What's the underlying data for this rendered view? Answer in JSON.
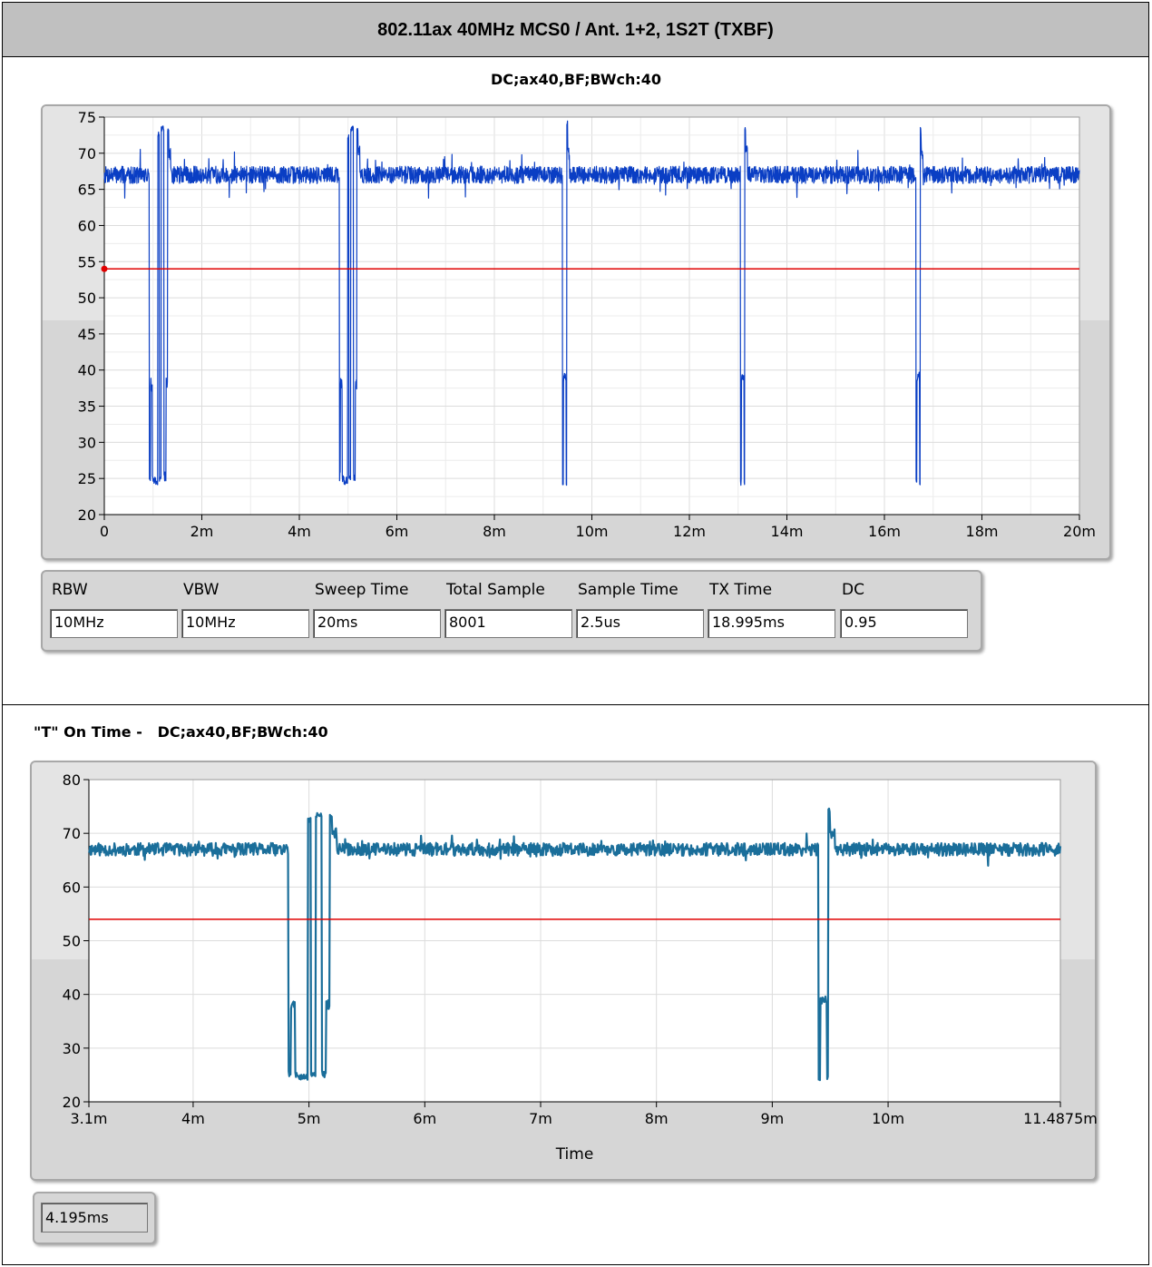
{
  "header": {
    "title": "802.11ax 40MHz MCS0 / Ant. 1+2, 1S2T (TXBF)"
  },
  "colors": {
    "trace_top": "#0a3ec4",
    "trace_bottom": "#1a6e9a",
    "threshold": "#e00000",
    "grid": "#dcdcdc"
  },
  "chart_data": [
    {
      "type": "line",
      "title": "DC;ax40,BF;BWch:40",
      "xlabel": "",
      "ylabel": "",
      "xlim": [
        0,
        20
      ],
      "ylim": [
        20,
        75
      ],
      "x_unit": "ms",
      "x_tick_labels": [
        "0",
        "2m",
        "4m",
        "6m",
        "8m",
        "10m",
        "12m",
        "14m",
        "16m",
        "18m",
        "20m"
      ],
      "y_tick_labels": [
        "75",
        "70",
        "65",
        "60",
        "55",
        "50",
        "45",
        "40",
        "35",
        "30",
        "25",
        "20"
      ],
      "grid": true,
      "threshold": 54,
      "series": [
        {
          "on_level": 67,
          "gaps": [
            {
              "start": 0.92,
              "end": 1.32,
              "low": 24.5,
              "shoulder": 38,
              "spike": 73
            },
            {
              "start": 4.82,
              "end": 5.2,
              "low": 24.5,
              "shoulder": 38,
              "spike": 73
            },
            {
              "start": 9.4,
              "end": 9.5,
              "low": 24,
              "shoulder": 39,
              "spike": 75
            },
            {
              "start": 13.05,
              "end": 13.15,
              "low": 24,
              "shoulder": 39,
              "spike": 74
            },
            {
              "start": 16.65,
              "end": 16.75,
              "low": 24,
              "shoulder": 39,
              "spike": 74
            }
          ]
        }
      ]
    },
    {
      "type": "line",
      "title": "\"T\" On Time -   DC;ax40,BF;BWch:40",
      "xlabel": "Time",
      "ylabel": "",
      "xlim": [
        3.1,
        11.4875
      ],
      "ylim": [
        20,
        80
      ],
      "x_unit": "ms",
      "x_ticks": [
        3.1,
        4,
        5,
        6,
        7,
        8,
        9,
        10,
        11.4875
      ],
      "x_tick_labels": [
        "3.1m",
        "4m",
        "5m",
        "6m",
        "7m",
        "8m",
        "9m",
        "10m",
        "11.4875m"
      ],
      "y_tick_labels": [
        "80",
        "70",
        "60",
        "50",
        "40",
        "30",
        "20"
      ],
      "grid": true,
      "threshold": 54,
      "series": [
        {
          "on_level": 67,
          "gaps": [
            {
              "start": 4.82,
              "end": 5.2,
              "low": 24.5,
              "shoulder": 38,
              "spike": 73
            },
            {
              "start": 9.4,
              "end": 9.5,
              "low": 24,
              "shoulder": 39,
              "spike": 75
            }
          ]
        }
      ]
    }
  ],
  "measurements": {
    "labels": [
      "RBW",
      "VBW",
      "Sweep Time",
      "Total Sample",
      "Sample Time",
      "TX Time",
      "DC"
    ],
    "values": [
      "10MHz",
      "10MHz",
      "20ms",
      "8001",
      "2.5us",
      "18.995ms",
      "0.95"
    ]
  },
  "on_time": {
    "value": "4.195ms"
  }
}
